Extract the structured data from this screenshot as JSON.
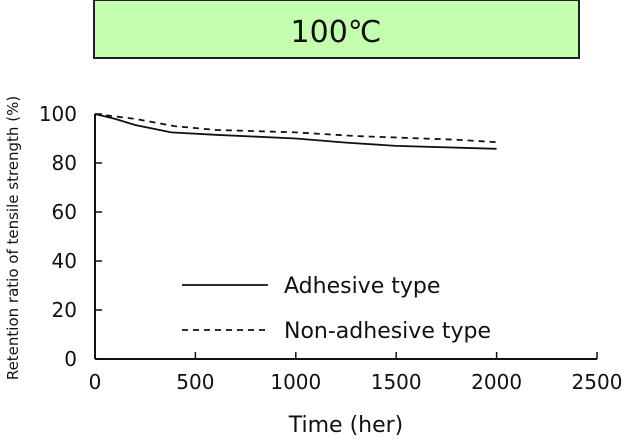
{
  "chart_data": {
    "type": "line",
    "title": "100℃",
    "xlabel": "Time (her)",
    "ylabel": "Retention ratio of tensile strength (%)",
    "xlim": [
      0,
      2500
    ],
    "ylim": [
      0,
      100
    ],
    "xticks": [
      0,
      500,
      1000,
      1500,
      2000,
      2500
    ],
    "yticks": [
      0,
      20,
      40,
      60,
      80,
      100
    ],
    "grid": false,
    "legend_position": "bottom-center",
    "colors": {
      "title_box": "#c4ffb0",
      "line": "#111111"
    },
    "series": [
      {
        "name": "Adhesive type",
        "style": "solid",
        "x": [
          0,
          100,
          200,
          380,
          600,
          1000,
          1250,
          1500,
          2000
        ],
        "y": [
          100,
          98,
          95.5,
          92.5,
          91.5,
          90,
          88.3,
          87,
          85.8
        ]
      },
      {
        "name": "Non-adhesive type",
        "style": "dashed",
        "x": [
          0,
          200,
          400,
          600,
          1000,
          1300,
          1800,
          2000
        ],
        "y": [
          100,
          98,
          95,
          93.5,
          92.5,
          91,
          89.5,
          88.5
        ]
      }
    ]
  }
}
